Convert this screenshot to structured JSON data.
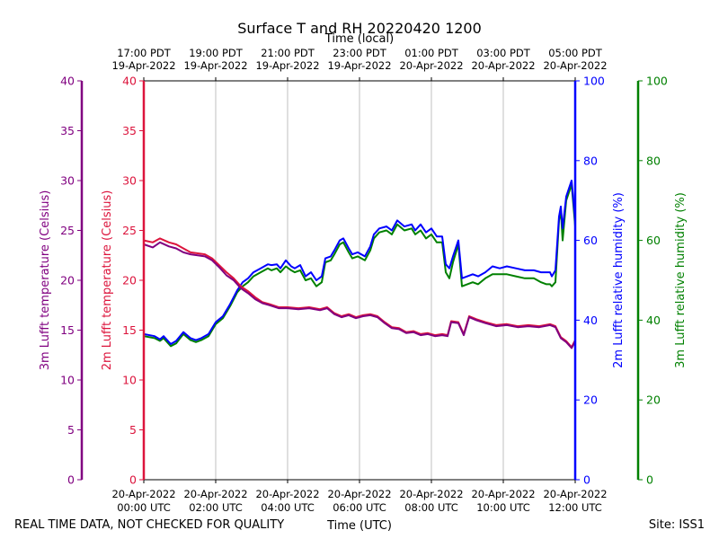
{
  "chart_data": {
    "type": "line",
    "title": "Surface T and RH 20220420 1200",
    "xlabel_bottom": "Time (UTC)",
    "xlabel_top": "Time (local)",
    "footer_left": "REAL TIME DATA, NOT CHECKED FOR QUALITY",
    "footer_right": "Site: ISS1",
    "xlim": [
      0,
      12
    ],
    "x_unit": "hours since 20-Apr-2022 00:00 UTC",
    "utc_ticks": [
      {
        "x": 0,
        "line1": "20-Apr-2022",
        "line2": "00:00 UTC"
      },
      {
        "x": 2,
        "line1": "20-Apr-2022",
        "line2": "02:00 UTC"
      },
      {
        "x": 4,
        "line1": "20-Apr-2022",
        "line2": "04:00 UTC"
      },
      {
        "x": 6,
        "line1": "20-Apr-2022",
        "line2": "06:00 UTC"
      },
      {
        "x": 8,
        "line1": "20-Apr-2022",
        "line2": "08:00 UTC"
      },
      {
        "x": 10,
        "line1": "20-Apr-2022",
        "line2": "10:00 UTC"
      },
      {
        "x": 12,
        "line1": "20-Apr-2022",
        "line2": "12:00 UTC"
      }
    ],
    "local_ticks": [
      {
        "x": 0,
        "line1": "17:00 PDT",
        "line2": "19-Apr-2022"
      },
      {
        "x": 2,
        "line1": "19:00 PDT",
        "line2": "19-Apr-2022"
      },
      {
        "x": 4,
        "line1": "21:00 PDT",
        "line2": "19-Apr-2022"
      },
      {
        "x": 6,
        "line1": "23:00 PDT",
        "line2": "19-Apr-2022"
      },
      {
        "x": 8,
        "line1": "01:00 PDT",
        "line2": "20-Apr-2022"
      },
      {
        "x": 10,
        "line1": "03:00 PDT",
        "line2": "20-Apr-2022"
      },
      {
        "x": 12,
        "line1": "05:00 PDT",
        "line2": "20-Apr-2022"
      }
    ],
    "axes": [
      {
        "id": "t3m",
        "label": "3m Lufft temperature (Celsius)",
        "color": "#800080",
        "range": [
          0,
          40
        ],
        "ticks": [
          0,
          5,
          10,
          15,
          20,
          25,
          30,
          35,
          40
        ]
      },
      {
        "id": "t2m",
        "label": "2m Lufft temperature (Celsius)",
        "color": "#dc143c",
        "range": [
          0,
          40
        ],
        "ticks": [
          0,
          5,
          10,
          15,
          20,
          25,
          30,
          35,
          40
        ]
      },
      {
        "id": "rh2m",
        "label": "2m Lufft relative humidity (%)",
        "color": "#0000ff",
        "range": [
          0,
          100
        ],
        "ticks": [
          0,
          20,
          40,
          60,
          80,
          100
        ]
      },
      {
        "id": "rh3m",
        "label": "3m Lufft relative humidity (%)",
        "color": "#008000",
        "range": [
          0,
          100
        ],
        "ticks": [
          0,
          20,
          40,
          60,
          80,
          100
        ]
      }
    ],
    "series": [
      {
        "name": "2m Lufft temperature",
        "axis": "t2m",
        "color": "#dc143c",
        "x": [
          0,
          0.25,
          0.45,
          0.7,
          0.9,
          1.1,
          1.3,
          1.5,
          1.7,
          1.9,
          2.1,
          2.3,
          2.5,
          2.7,
          2.9,
          3.1,
          3.3,
          3.5,
          3.75,
          4,
          4.3,
          4.6,
          4.9,
          5.1,
          5.3,
          5.5,
          5.7,
          5.9,
          6.1,
          6.3,
          6.5,
          6.7,
          6.9,
          7.1,
          7.3,
          7.5,
          7.7,
          7.9,
          8.1,
          8.3,
          8.45,
          8.55,
          8.75,
          8.9,
          9.05,
          9.25,
          9.5,
          9.8,
          10.1,
          10.4,
          10.7,
          11,
          11.3,
          11.45,
          11.6,
          11.75,
          11.9,
          12
        ],
        "values": [
          24.0,
          23.8,
          24.2,
          23.8,
          23.6,
          23.2,
          22.8,
          22.7,
          22.6,
          22.2,
          21.5,
          20.8,
          20.2,
          19.4,
          18.9,
          18.3,
          17.8,
          17.6,
          17.3,
          17.3,
          17.2,
          17.3,
          17.1,
          17.3,
          16.7,
          16.4,
          16.6,
          16.3,
          16.5,
          16.6,
          16.4,
          15.8,
          15.3,
          15.2,
          14.8,
          14.9,
          14.6,
          14.7,
          14.5,
          14.6,
          14.5,
          15.9,
          15.8,
          14.6,
          16.4,
          16.1,
          15.8,
          15.5,
          15.6,
          15.4,
          15.5,
          15.4,
          15.6,
          15.4,
          14.3,
          13.9,
          13.3,
          14.0
        ]
      },
      {
        "name": "3m Lufft temperature",
        "axis": "t3m",
        "color": "#800080",
        "x": [
          0,
          0.25,
          0.45,
          0.7,
          0.9,
          1.1,
          1.3,
          1.5,
          1.7,
          1.9,
          2.1,
          2.3,
          2.5,
          2.7,
          2.9,
          3.1,
          3.3,
          3.5,
          3.75,
          4,
          4.3,
          4.6,
          4.9,
          5.1,
          5.3,
          5.5,
          5.7,
          5.9,
          6.1,
          6.3,
          6.5,
          6.7,
          6.9,
          7.1,
          7.3,
          7.5,
          7.7,
          7.9,
          8.1,
          8.3,
          8.45,
          8.55,
          8.75,
          8.9,
          9.05,
          9.25,
          9.5,
          9.8,
          10.1,
          10.4,
          10.7,
          11,
          11.3,
          11.45,
          11.6,
          11.75,
          11.9,
          12
        ],
        "values": [
          23.6,
          23.3,
          23.8,
          23.4,
          23.2,
          22.8,
          22.6,
          22.5,
          22.4,
          22.0,
          21.3,
          20.5,
          20.0,
          19.2,
          18.7,
          18.1,
          17.7,
          17.5,
          17.2,
          17.2,
          17.1,
          17.2,
          17.0,
          17.2,
          16.6,
          16.3,
          16.5,
          16.2,
          16.4,
          16.5,
          16.3,
          15.7,
          15.2,
          15.1,
          14.7,
          14.8,
          14.5,
          14.6,
          14.4,
          14.5,
          14.4,
          15.8,
          15.7,
          14.5,
          16.3,
          16.0,
          15.7,
          15.4,
          15.5,
          15.3,
          15.4,
          15.3,
          15.5,
          15.3,
          14.2,
          13.8,
          13.2,
          13.9
        ]
      },
      {
        "name": "2m Lufft relative humidity",
        "axis": "rh2m",
        "color": "#0000ff",
        "x": [
          0,
          0.3,
          0.45,
          0.55,
          0.75,
          0.9,
          1.1,
          1.3,
          1.45,
          1.6,
          1.8,
          2.0,
          2.2,
          2.4,
          2.6,
          2.75,
          2.9,
          3.05,
          3.25,
          3.45,
          3.55,
          3.7,
          3.8,
          3.95,
          4.1,
          4.2,
          4.35,
          4.5,
          4.65,
          4.8,
          4.95,
          5.05,
          5.2,
          5.3,
          5.45,
          5.55,
          5.7,
          5.8,
          5.95,
          6.15,
          6.3,
          6.4,
          6.55,
          6.75,
          6.9,
          7.05,
          7.25,
          7.45,
          7.55,
          7.7,
          7.85,
          8.0,
          8.15,
          8.3,
          8.4,
          8.5,
          8.6,
          8.75,
          8.85,
          9.0,
          9.15,
          9.3,
          9.5,
          9.7,
          9.9,
          10.1,
          10.35,
          10.6,
          10.85,
          11.05,
          11.2,
          11.3,
          11.35,
          11.45,
          11.55,
          11.6,
          11.65,
          11.75,
          11.9,
          12.0
        ],
        "values": [
          36.5,
          36.0,
          35.2,
          36.0,
          34.0,
          34.8,
          37.0,
          35.5,
          35.0,
          35.5,
          36.5,
          39.5,
          41.0,
          44.0,
          47.5,
          49.5,
          50.5,
          52.0,
          53.0,
          54.0,
          53.8,
          54.0,
          53.0,
          55.0,
          53.5,
          53.0,
          53.8,
          51.0,
          52.0,
          50.0,
          51.0,
          55.5,
          56.0,
          57.5,
          60.0,
          60.5,
          58.0,
          56.5,
          57.0,
          56.0,
          58.5,
          61.5,
          63.0,
          63.5,
          62.5,
          65.0,
          63.5,
          64.0,
          62.5,
          64.0,
          62.0,
          63.0,
          61.0,
          61.0,
          54.0,
          53.0,
          56.0,
          60.0,
          50.5,
          51.0,
          51.5,
          51.0,
          52.0,
          53.5,
          53.0,
          53.5,
          53.0,
          52.5,
          52.5,
          52.0,
          52.0,
          52.0,
          51.0,
          52.5,
          66.0,
          68.5,
          63.0,
          71.0,
          75.0,
          65.0
        ]
      },
      {
        "name": "3m Lufft relative humidity",
        "axis": "rh3m",
        "color": "#008000",
        "x": [
          0,
          0.3,
          0.45,
          0.55,
          0.75,
          0.9,
          1.1,
          1.3,
          1.45,
          1.6,
          1.8,
          2.0,
          2.2,
          2.4,
          2.6,
          2.75,
          2.9,
          3.05,
          3.25,
          3.45,
          3.55,
          3.7,
          3.8,
          3.95,
          4.1,
          4.2,
          4.35,
          4.5,
          4.65,
          4.8,
          4.95,
          5.05,
          5.2,
          5.3,
          5.45,
          5.55,
          5.7,
          5.8,
          5.95,
          6.15,
          6.3,
          6.4,
          6.55,
          6.75,
          6.9,
          7.05,
          7.25,
          7.45,
          7.55,
          7.7,
          7.85,
          8.0,
          8.15,
          8.3,
          8.4,
          8.5,
          8.6,
          8.75,
          8.85,
          9.0,
          9.15,
          9.3,
          9.5,
          9.7,
          9.9,
          10.1,
          10.35,
          10.6,
          10.85,
          11.05,
          11.2,
          11.3,
          11.35,
          11.45,
          11.55,
          11.6,
          11.65,
          11.75,
          11.9,
          12.0
        ],
        "values": [
          36.0,
          35.5,
          34.8,
          35.5,
          33.5,
          34.2,
          36.5,
          35.0,
          34.5,
          35.0,
          36.0,
          39.0,
          40.5,
          43.5,
          47.0,
          48.5,
          49.5,
          51.0,
          52.0,
          53.0,
          52.5,
          53.0,
          52.0,
          53.5,
          52.5,
          52.0,
          52.5,
          50.0,
          50.5,
          48.5,
          49.5,
          54.5,
          55.0,
          56.5,
          59.0,
          59.5,
          57.0,
          55.5,
          56.0,
          55.0,
          57.5,
          60.5,
          62.0,
          62.5,
          61.5,
          64.0,
          62.5,
          63.0,
          61.5,
          62.5,
          60.5,
          61.5,
          59.5,
          59.5,
          52.0,
          50.5,
          54.5,
          59.0,
          48.5,
          49.0,
          49.5,
          49.0,
          50.5,
          51.5,
          51.5,
          51.5,
          51.0,
          50.5,
          50.5,
          49.5,
          49.0,
          49.0,
          48.5,
          49.5,
          65.0,
          67.5,
          60.0,
          70.0,
          74.0,
          63.5
        ]
      }
    ]
  }
}
